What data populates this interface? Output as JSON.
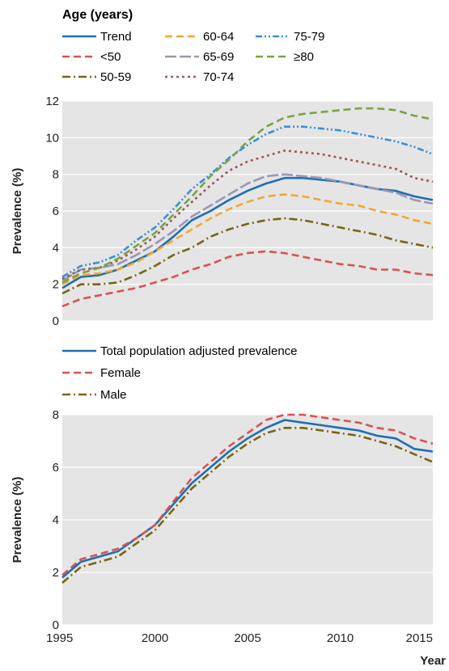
{
  "chart_data": [
    {
      "type": "line",
      "legend_title": "Age (years)",
      "ylabel": "Prevalence (%)",
      "xlabel": "",
      "xlim": [
        1995,
        2015
      ],
      "ylim": [
        0,
        12
      ],
      "yticks": [
        0,
        2,
        4,
        6,
        8,
        10,
        12
      ],
      "grid": true,
      "legend_position": "top",
      "x": [
        1995,
        1996,
        1997,
        1998,
        1999,
        2000,
        2001,
        2002,
        2003,
        2004,
        2005,
        2006,
        2007,
        2008,
        2009,
        2010,
        2011,
        2012,
        2013,
        2014,
        2015
      ],
      "series": [
        {
          "name": "Trend",
          "color": "#1f6eb4",
          "dash": "solid",
          "values": [
            1.8,
            2.4,
            2.5,
            2.8,
            3.3,
            3.8,
            4.6,
            5.5,
            6.0,
            6.6,
            7.1,
            7.5,
            7.8,
            7.8,
            7.7,
            7.6,
            7.4,
            7.2,
            7.1,
            6.8,
            6.6
          ]
        },
        {
          "name": "<50",
          "color": "#d9534f",
          "dash": "dash",
          "values": [
            0.8,
            1.2,
            1.4,
            1.6,
            1.8,
            2.1,
            2.4,
            2.8,
            3.1,
            3.5,
            3.7,
            3.8,
            3.7,
            3.5,
            3.3,
            3.1,
            3.0,
            2.8,
            2.8,
            2.6,
            2.5
          ]
        },
        {
          "name": "50-59",
          "color": "#7a6415",
          "dash": "dashdot",
          "values": [
            1.5,
            2.0,
            2.0,
            2.1,
            2.5,
            3.0,
            3.6,
            4.0,
            4.6,
            5.0,
            5.3,
            5.5,
            5.6,
            5.5,
            5.3,
            5.1,
            4.9,
            4.7,
            4.4,
            4.2,
            4.0
          ]
        },
        {
          "name": "60-64",
          "color": "#f0a830",
          "dash": "dash",
          "values": [
            2.0,
            2.5,
            2.6,
            2.8,
            3.2,
            3.8,
            4.4,
            5.0,
            5.6,
            6.1,
            6.5,
            6.8,
            6.9,
            6.8,
            6.6,
            6.4,
            6.3,
            6.0,
            5.8,
            5.5,
            5.3
          ]
        },
        {
          "name": "65-69",
          "color": "#9a97b6",
          "dash": "longdash",
          "values": [
            2.2,
            2.8,
            2.9,
            3.1,
            3.6,
            4.2,
            4.9,
            5.7,
            6.3,
            6.9,
            7.5,
            7.9,
            8.0,
            7.9,
            7.8,
            7.6,
            7.4,
            7.2,
            7.0,
            6.6,
            6.4
          ]
        },
        {
          "name": "70-74",
          "color": "#9b5a52",
          "dash": "dot",
          "values": [
            2.3,
            2.8,
            2.9,
            3.3,
            3.9,
            4.6,
            5.6,
            6.5,
            7.4,
            8.2,
            8.7,
            9.0,
            9.3,
            9.2,
            9.1,
            8.9,
            8.7,
            8.5,
            8.3,
            7.8,
            7.6
          ]
        },
        {
          "name": "75-79",
          "color": "#3b8fd6",
          "dash": "dashdotdot",
          "values": [
            2.4,
            3.0,
            3.2,
            3.6,
            4.4,
            5.1,
            6.1,
            7.2,
            8.0,
            8.9,
            9.6,
            10.2,
            10.6,
            10.6,
            10.5,
            10.4,
            10.2,
            10.0,
            9.8,
            9.5,
            9.1
          ]
        },
        {
          "name": "≥80",
          "color": "#7aa344",
          "dash": "dash",
          "values": [
            2.1,
            2.6,
            2.9,
            3.4,
            4.1,
            4.8,
            5.8,
            6.8,
            7.9,
            8.8,
            9.8,
            10.6,
            11.1,
            11.3,
            11.4,
            11.5,
            11.6,
            11.6,
            11.5,
            11.2,
            11.0
          ]
        }
      ]
    },
    {
      "type": "line",
      "ylabel": "Prevalence (%)",
      "xlabel": "Year",
      "xlim": [
        1995,
        2015
      ],
      "ylim": [
        0,
        8
      ],
      "xticks": [
        1995,
        2000,
        2005,
        2010,
        2015
      ],
      "yticks": [
        0,
        2,
        4,
        6,
        8
      ],
      "grid": true,
      "legend_position": "top",
      "x": [
        1995,
        1996,
        1997,
        1998,
        1999,
        2000,
        2001,
        2002,
        2003,
        2004,
        2005,
        2006,
        2007,
        2008,
        2009,
        2010,
        2011,
        2012,
        2013,
        2014,
        2015
      ],
      "series": [
        {
          "name": "Total population adjusted prevalence",
          "color": "#1f6eb4",
          "dash": "solid",
          "values": [
            1.8,
            2.4,
            2.6,
            2.8,
            3.3,
            3.8,
            4.6,
            5.4,
            6.0,
            6.6,
            7.1,
            7.5,
            7.8,
            7.7,
            7.6,
            7.5,
            7.4,
            7.2,
            7.1,
            6.7,
            6.6
          ]
        },
        {
          "name": "Female",
          "color": "#d9534f",
          "dash": "dash",
          "values": [
            1.9,
            2.5,
            2.7,
            2.9,
            3.3,
            3.8,
            4.7,
            5.6,
            6.2,
            6.8,
            7.3,
            7.8,
            8.0,
            8.0,
            7.9,
            7.8,
            7.7,
            7.5,
            7.4,
            7.1,
            6.9
          ]
        },
        {
          "name": "Male",
          "color": "#7a6415",
          "dash": "dashdot",
          "values": [
            1.6,
            2.2,
            2.4,
            2.6,
            3.1,
            3.6,
            4.4,
            5.2,
            5.8,
            6.4,
            6.9,
            7.3,
            7.5,
            7.5,
            7.4,
            7.3,
            7.2,
            7.0,
            6.8,
            6.5,
            6.2
          ]
        }
      ]
    }
  ]
}
